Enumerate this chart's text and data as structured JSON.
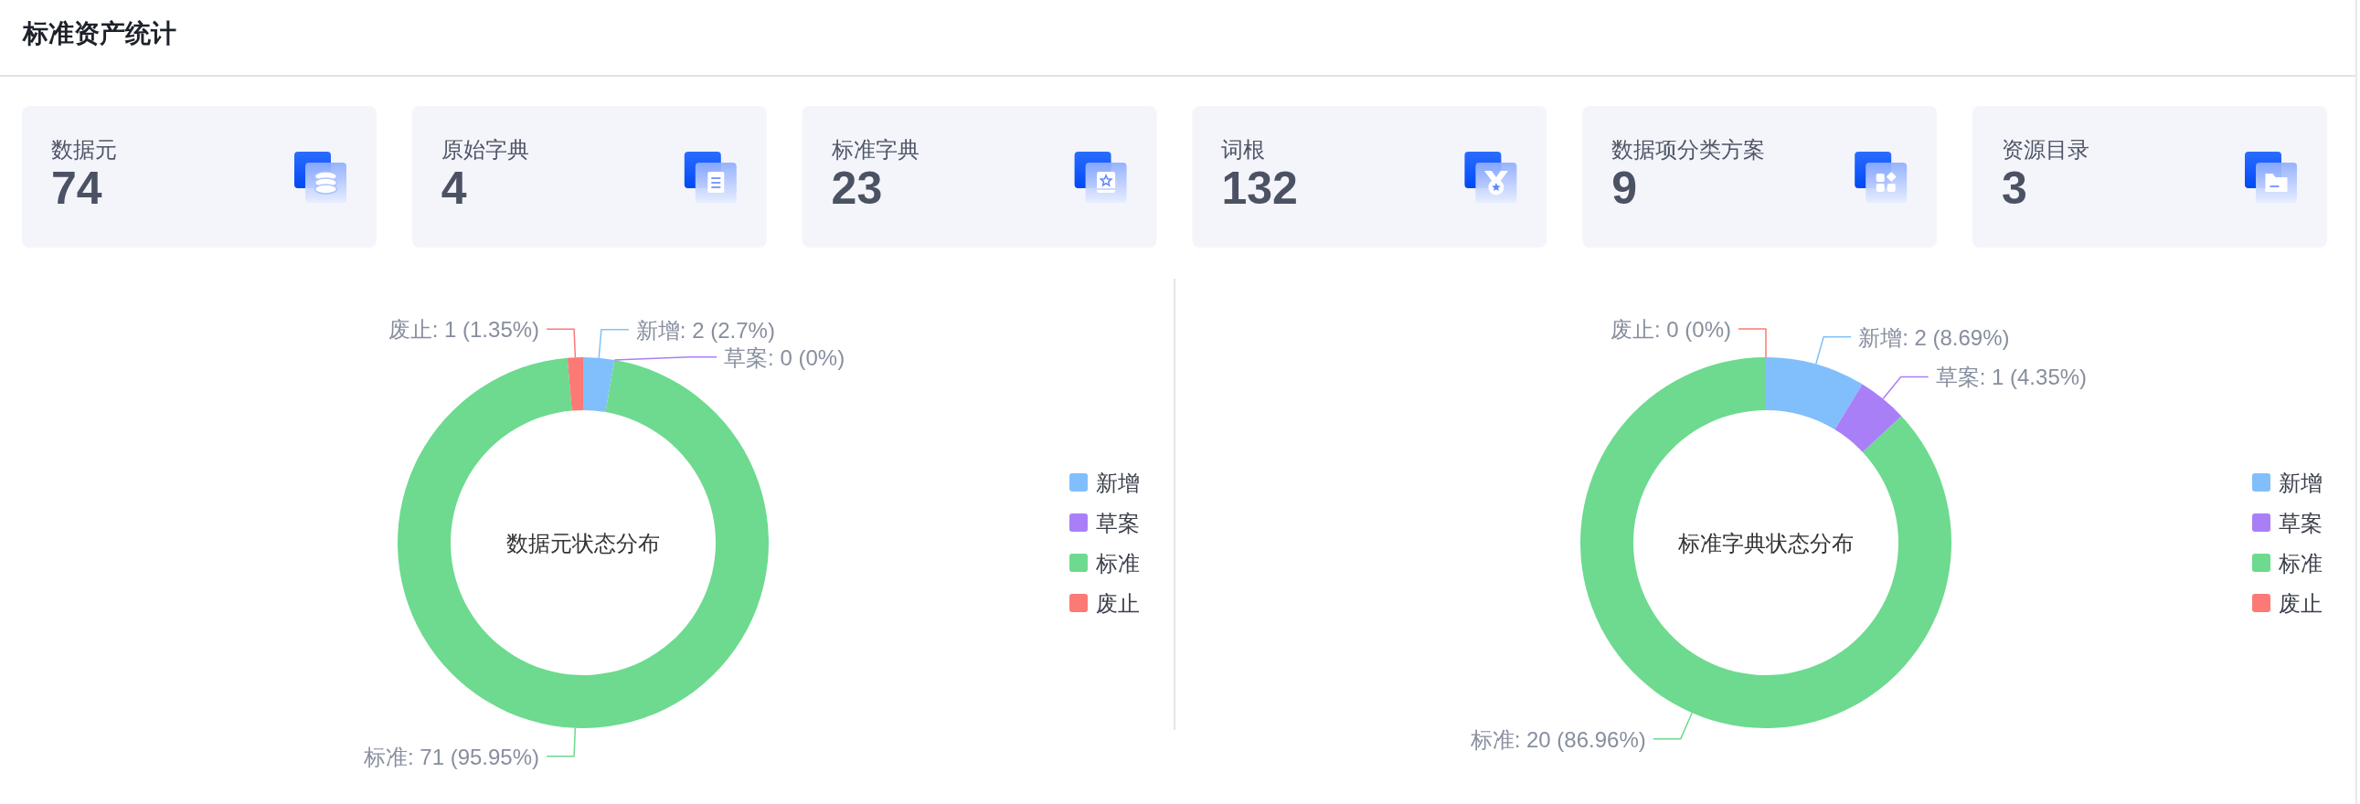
{
  "chart_data": [
    {
      "type": "other",
      "title": "标准资产统计",
      "categories": [
        "数据元",
        "原始字典",
        "标准字典",
        "词根",
        "数据项分类方案",
        "资源目录"
      ],
      "values": [
        74,
        4,
        23,
        132,
        9,
        3
      ],
      "data_labels": true
    },
    {
      "type": "donut",
      "title": "数据元状态分布",
      "categories": [
        "新增",
        "草案",
        "标准",
        "废止"
      ],
      "values": [
        2,
        0,
        71,
        1
      ],
      "colors": [
        "#80bffc",
        "#a97ff8",
        "#6dda8f",
        "#fb7a75"
      ],
      "value_labels": [
        "新增: 2 (2.7%)",
        "草案: 0 (0%)",
        "标准: 71 (95.95%)",
        "废止: 1 (1.35%)"
      ],
      "legend": "right"
    },
    {
      "type": "donut",
      "title": "标准字典状态分布",
      "categories": [
        "新增",
        "草案",
        "标准",
        "废止"
      ],
      "values": [
        2,
        1,
        20,
        0
      ],
      "colors": [
        "#80bffc",
        "#a97ff8",
        "#6dda8f",
        "#fb7a75"
      ],
      "value_labels": [
        "新增: 2 (8.69%)",
        "草案: 1 (4.35%)",
        "标准: 20 (86.96%)",
        "废止: 0 (0%)"
      ],
      "legend": "right"
    }
  ]
}
